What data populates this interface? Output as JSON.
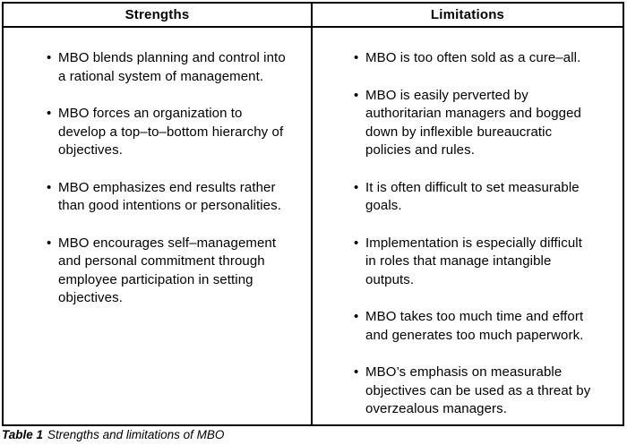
{
  "glyphs": {
    "bullet": "•"
  },
  "colors": {
    "border": "#000000",
    "background": "#ffffff",
    "text": "#000000"
  },
  "table": {
    "columns": [
      {
        "header": "Strengths",
        "items": [
          "MBO blends planning and control into\na rational system of management.",
          "MBO forces an organization to\ndevelop a top–to–bottom hierarchy of\nobjectives.",
          "MBO emphasizes end results rather\nthan good intentions or personalities.",
          "MBO encourages self–management\nand personal commitment through\nemployee participation in setting\nobjectives."
        ]
      },
      {
        "header": "Limitations",
        "items": [
          "MBO is too often sold as a cure–all.",
          "MBO is easily perverted by\nauthoritarian managers and bogged\ndown by inflexible bureaucratic\npolicies and rules.",
          "It is often difficult to set measurable\ngoals.",
          "Implementation is especially difficult\nin roles that manage intangible\noutputs.",
          "MBO takes too much time and effort\nand generates too much paperwork.",
          "MBO’s emphasis on measurable\nobjectives can be used as a threat by\noverzealous managers."
        ]
      }
    ]
  },
  "caption": {
    "label": "Table 1",
    "text": "Strengths and limitations of MBO"
  }
}
